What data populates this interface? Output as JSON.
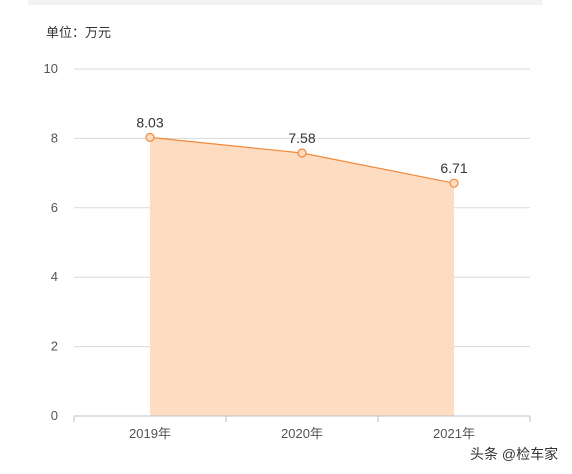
{
  "unit_label": "单位：万元",
  "watermark": "头条 @检车家",
  "colors": {
    "line": "#f08a3c",
    "area": "#fddcc2",
    "grid": "#d9d9d9",
    "axis": "#b7c2cf",
    "point_fill": "#fddcc2"
  },
  "chart_data": {
    "type": "area",
    "categories": [
      "2019年",
      "2020年",
      "2021年"
    ],
    "values": [
      8.03,
      7.58,
      6.71
    ],
    "data_labels": [
      "8.03",
      "7.58",
      "6.71"
    ],
    "ylim": [
      0,
      10
    ],
    "yticks": [
      "0",
      "2",
      "4",
      "6",
      "8",
      "10"
    ],
    "grid": true,
    "title": "",
    "xlabel": "",
    "ylabel": ""
  }
}
